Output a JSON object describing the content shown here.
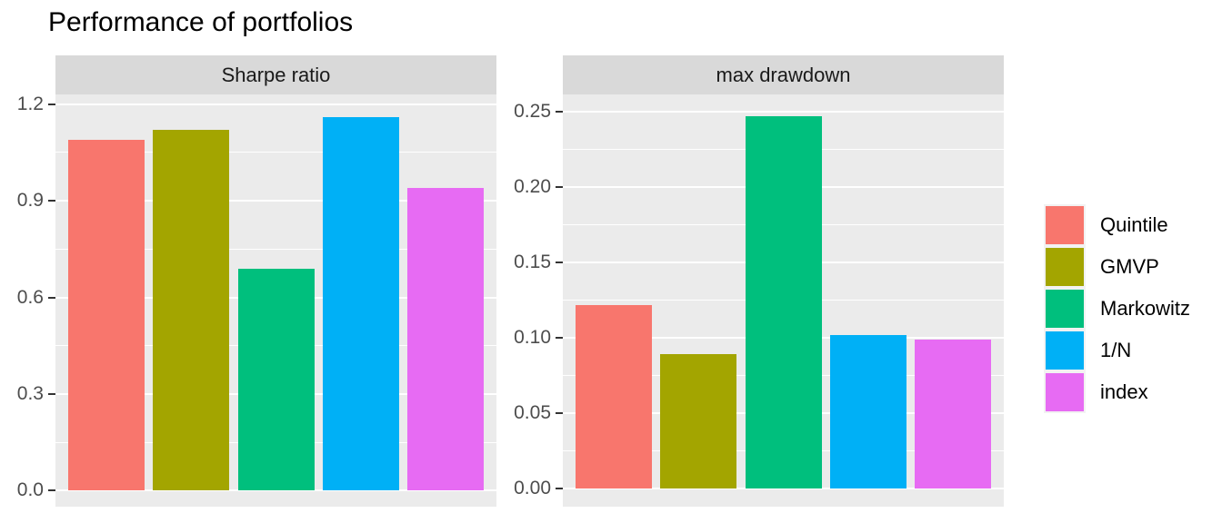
{
  "title": "Performance of portfolios",
  "colors": {
    "page_bg": "#FFFFFF",
    "panel_bg": "#EBEBEB",
    "strip_bg": "#D9D9D9",
    "grid": "#FFFFFF",
    "axis_text": "#4D4D4D",
    "tick_mark": "#333333",
    "strip_text": "#1A1A1A",
    "title_text": "#000000",
    "legend_key_bg": "#F2F2F2",
    "legend_text": "#000000"
  },
  "chart_data": {
    "type": "bar",
    "title": "Performance of portfolios",
    "xlabel": "",
    "ylabel": "",
    "grid": true,
    "categories": [
      "Quintile",
      "GMVP",
      "Markowitz",
      "1/N",
      "index"
    ],
    "palette": [
      "#F8766D",
      "#A3A500",
      "#00BF7D",
      "#00B0F6",
      "#E76BF3"
    ],
    "legend": {
      "position": "right",
      "entries": [
        {
          "label": "Quintile",
          "color": "#F8766D"
        },
        {
          "label": "GMVP",
          "color": "#A3A500"
        },
        {
          "label": "Markowitz",
          "color": "#00BF7D"
        },
        {
          "label": "1/N",
          "color": "#00B0F6"
        },
        {
          "label": "index",
          "color": "#E76BF3"
        }
      ]
    },
    "facets": [
      {
        "strip_label": "Sharpe ratio",
        "values": [
          1.09,
          1.12,
          0.69,
          1.16,
          0.94
        ],
        "ylim": [
          -0.05,
          1.23
        ],
        "yticks": [
          {
            "v": 0.0,
            "label": "0.0"
          },
          {
            "v": 0.3,
            "label": "0.3"
          },
          {
            "v": 0.6,
            "label": "0.6"
          },
          {
            "v": 0.9,
            "label": "0.9"
          },
          {
            "v": 1.2,
            "label": "1.2"
          }
        ],
        "yminor": [
          0.15,
          0.45,
          0.75,
          1.05
        ]
      },
      {
        "strip_label": "max drawdown",
        "values": [
          0.122,
          0.089,
          0.247,
          0.102,
          0.099
        ],
        "ylim": [
          -0.012,
          0.2614
        ],
        "yticks": [
          {
            "v": 0.0,
            "label": "0.00"
          },
          {
            "v": 0.05,
            "label": "0.05"
          },
          {
            "v": 0.1,
            "label": "0.10"
          },
          {
            "v": 0.15,
            "label": "0.15"
          },
          {
            "v": 0.2,
            "label": "0.20"
          },
          {
            "v": 0.25,
            "label": "0.25"
          }
        ],
        "yminor": [
          0.025,
          0.075,
          0.125,
          0.175,
          0.225
        ]
      }
    ]
  }
}
